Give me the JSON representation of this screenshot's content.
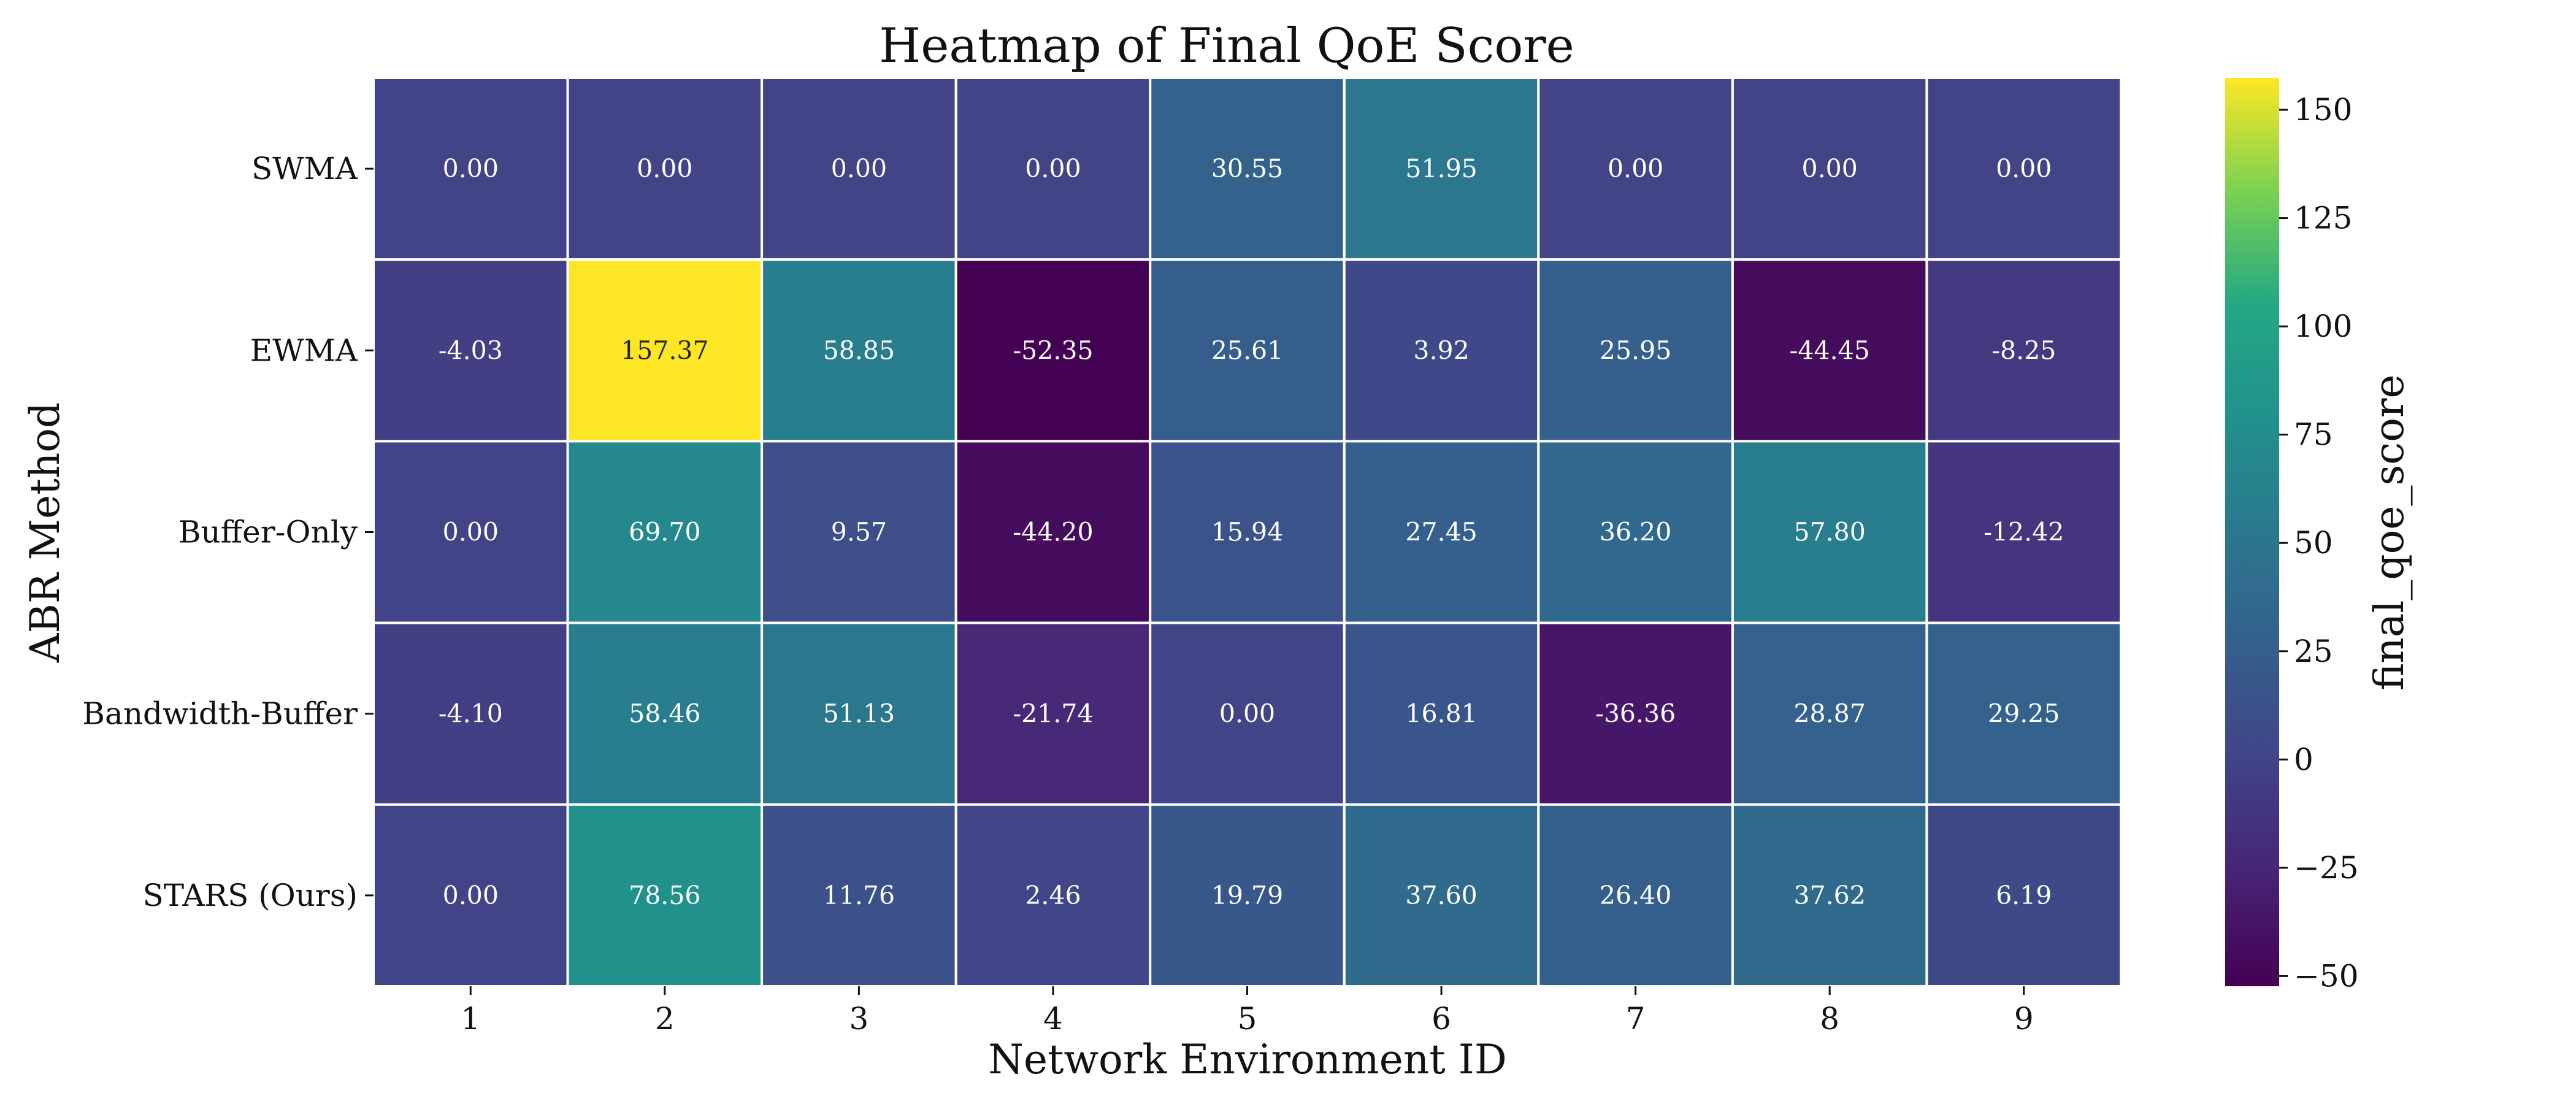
{
  "chart_data": {
    "type": "heatmap",
    "title": "Heatmap of Final QoE Score",
    "xlabel": "Network Environment ID",
    "ylabel": "ABR Method",
    "colorbar_label": "final_qoe_score",
    "colormap": "viridis",
    "x_categories": [
      "1",
      "2",
      "3",
      "4",
      "5",
      "6",
      "7",
      "8",
      "9"
    ],
    "y_categories": [
      "SWMA",
      "EWMA",
      "Buffer-Only",
      "Bandwidth-Buffer",
      "STARS (Ours)"
    ],
    "values": [
      [
        0.0,
        0.0,
        0.0,
        0.0,
        30.55,
        51.95,
        0.0,
        0.0,
        0.0
      ],
      [
        -4.03,
        157.37,
        58.85,
        -52.35,
        25.61,
        3.92,
        25.95,
        -44.45,
        -8.25
      ],
      [
        0.0,
        69.7,
        9.57,
        -44.2,
        15.94,
        27.45,
        36.2,
        57.8,
        -12.42
      ],
      [
        -4.1,
        58.46,
        51.13,
        -21.74,
        0.0,
        16.81,
        -36.36,
        28.87,
        29.25
      ],
      [
        0.0,
        78.56,
        11.76,
        2.46,
        19.79,
        37.6,
        26.4,
        37.62,
        6.19
      ]
    ],
    "value_labels": [
      [
        "0.00",
        "0.00",
        "0.00",
        "0.00",
        "30.55",
        "51.95",
        "0.00",
        "0.00",
        "0.00"
      ],
      [
        "-4.03",
        "157.37",
        "58.85",
        "-52.35",
        "25.61",
        "3.92",
        "25.95",
        "-44.45",
        "-8.25"
      ],
      [
        "0.00",
        "69.70",
        "9.57",
        "-44.20",
        "15.94",
        "27.45",
        "36.20",
        "57.80",
        "-12.42"
      ],
      [
        "-4.10",
        "58.46",
        "51.13",
        "-21.74",
        "0.00",
        "16.81",
        "-36.36",
        "28.87",
        "29.25"
      ],
      [
        "0.00",
        "78.56",
        "11.76",
        "2.46",
        "19.79",
        "37.60",
        "26.40",
        "37.62",
        "6.19"
      ]
    ],
    "vmin": -52.35,
    "vmax": 157.37,
    "colorbar_ticks": [
      -50,
      -25,
      0,
      25,
      50,
      75,
      100,
      125,
      150
    ],
    "colorbar_tick_labels": [
      "−50",
      "−25",
      "0",
      "25",
      "50",
      "75",
      "100",
      "125",
      "150"
    ]
  }
}
